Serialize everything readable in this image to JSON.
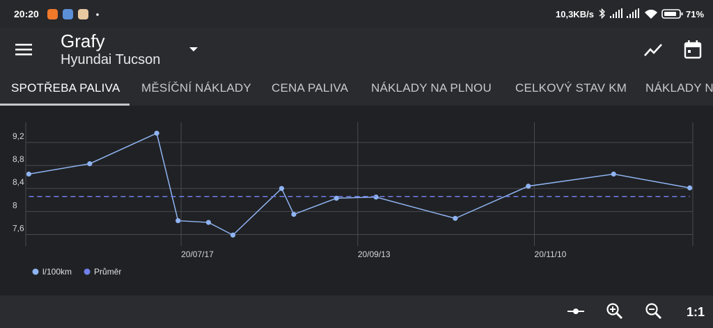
{
  "status_bar": {
    "time": "20:20",
    "network_speed": "10,3KB/s",
    "battery": "71%"
  },
  "app_bar": {
    "title": "Grafy",
    "subtitle": "Hyundai Tucson"
  },
  "tabs": [
    "SPOTŘEBA PALIVA",
    "MĚSÍČNÍ NÁKLADY",
    "CENA PALIVA",
    "NÁKLADY NA PLNOU",
    "CELKOVÝ STAV KM",
    "NÁKLADY N"
  ],
  "chart_data": {
    "type": "line",
    "x": [
      "20/05/28",
      "20/06/17",
      "20/07/09",
      "20/07/16",
      "20/07/26",
      "20/08/03",
      "20/08/19",
      "20/08/23",
      "20/09/06",
      "20/09/19",
      "20/10/15",
      "20/11/08",
      "20/12/06",
      "20/12/31"
    ],
    "series": [
      {
        "name": "l/100km",
        "color": "#8fb4f2",
        "values": [
          8.65,
          8.83,
          9.36,
          7.84,
          7.81,
          7.59,
          8.4,
          7.95,
          8.23,
          8.25,
          7.88,
          8.44,
          8.65,
          8.41
        ]
      },
      {
        "name": "Průměr",
        "color": "#6f80ea",
        "dashed": true,
        "values": [
          8.26,
          8.26,
          8.26,
          8.26,
          8.26,
          8.26,
          8.26,
          8.26,
          8.26,
          8.26,
          8.26,
          8.26,
          8.26,
          8.26
        ]
      }
    ],
    "xlim": [
      "20/05/27",
      "21/01/01"
    ],
    "xticks": [
      "20/07/17",
      "20/09/13",
      "20/11/10"
    ],
    "ylim": [
      7.4,
      9.55
    ],
    "yticks": [
      {
        "value": 7.6,
        "label": "7,6"
      },
      8,
      {
        "value": 8.4,
        "label": "8,4"
      },
      {
        "value": 8.8,
        "label": "8,8"
      },
      {
        "value": 9.2,
        "label": "9,2"
      }
    ],
    "grid": true,
    "legend": "bottom-left"
  },
  "toolbar": {
    "reset_zoom": "1:1"
  }
}
